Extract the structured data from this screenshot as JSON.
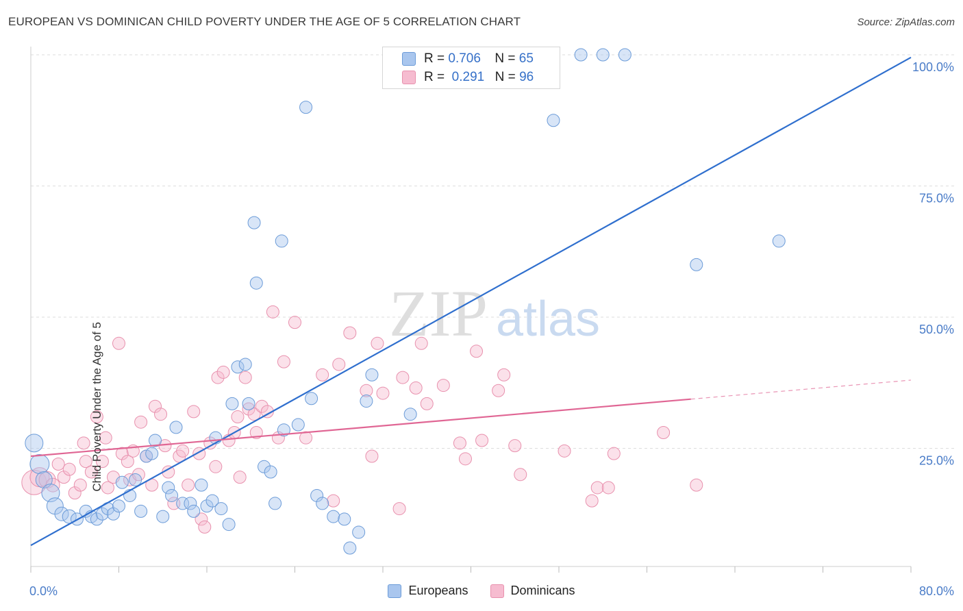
{
  "title": "EUROPEAN VS DOMINICAN CHILD POVERTY UNDER THE AGE OF 5 CORRELATION CHART",
  "source": "Source: ZipAtlas.com",
  "watermark": {
    "zip": "ZIP",
    "atlas": "atlas"
  },
  "legend": {
    "rows": [
      {
        "r_label": "R =",
        "r_value": "0.706",
        "n_label": "N =",
        "n_value": "65"
      },
      {
        "r_label": "R =",
        "r_value": "0.291",
        "n_label": "N =",
        "n_value": "96"
      }
    ]
  },
  "bottom_legend": [
    "Europeans",
    "Dominicans"
  ],
  "colors": {
    "europeans_fill": "#a9c6ee",
    "europeans_stroke": "#6b9bd8",
    "europeans_line": "#2f6fce",
    "dominicans_fill": "#f6bcd0",
    "dominicans_stroke": "#e890ad",
    "dominicans_line": "#e06694",
    "grid": "#dddddd",
    "tick_text": "#4a7cc8"
  },
  "chart_data": {
    "type": "scatter",
    "title": "EUROPEAN VS DOMINICAN CHILD POVERTY UNDER THE AGE OF 5 CORRELATION CHART",
    "xlabel": "",
    "ylabel": "Child Poverty Under the Age of 5",
    "xlim": [
      0,
      80
    ],
    "ylim": [
      0,
      105
    ],
    "x_tick_labels": [
      "0.0%",
      "80.0%"
    ],
    "y_ticks": [
      25,
      50,
      75,
      100
    ],
    "y_tick_labels": [
      "25.0%",
      "50.0%",
      "75.0%",
      "100.0%"
    ],
    "grid": true,
    "series": [
      {
        "name": "Europeans",
        "R": 0.706,
        "N": 65,
        "trend": {
          "x0": 0,
          "y0": 6.5,
          "x1": 80,
          "y1": 99.5,
          "dashed_from": null
        },
        "points": [
          [
            0.3,
            26.0,
            13
          ],
          [
            0.8,
            22.0,
            14
          ],
          [
            1.2,
            19.0,
            12
          ],
          [
            1.8,
            16.5,
            13
          ],
          [
            2.2,
            14.0,
            12
          ],
          [
            2.8,
            12.5,
            10
          ],
          [
            3.5,
            12.0,
            10
          ],
          [
            4.2,
            11.5,
            9
          ],
          [
            5.0,
            13.0,
            9
          ],
          [
            5.5,
            12.0,
            9
          ],
          [
            6.0,
            11.5,
            9
          ],
          [
            6.5,
            12.5,
            9
          ],
          [
            7.0,
            13.5,
            9
          ],
          [
            7.5,
            12.5,
            9
          ],
          [
            8.0,
            14.0,
            9
          ],
          [
            8.3,
            18.5,
            9
          ],
          [
            9.0,
            16.0,
            9
          ],
          [
            9.5,
            19.0,
            9
          ],
          [
            10.0,
            13.0,
            9
          ],
          [
            10.5,
            23.5,
            9
          ],
          [
            11.0,
            24.0,
            9
          ],
          [
            11.3,
            26.5,
            9
          ],
          [
            12.0,
            12.0,
            9
          ],
          [
            12.5,
            17.5,
            9
          ],
          [
            12.8,
            16.0,
            9
          ],
          [
            13.2,
            29.0,
            9
          ],
          [
            13.8,
            14.5,
            9
          ],
          [
            14.5,
            14.5,
            9
          ],
          [
            14.8,
            13.0,
            9
          ],
          [
            15.5,
            18.0,
            9
          ],
          [
            16.0,
            14.0,
            9
          ],
          [
            16.5,
            15.0,
            9
          ],
          [
            16.8,
            27.0,
            9
          ],
          [
            17.3,
            13.5,
            9
          ],
          [
            18.0,
            10.5,
            9
          ],
          [
            18.3,
            33.5,
            9
          ],
          [
            18.8,
            40.5,
            9
          ],
          [
            19.5,
            41.0,
            9
          ],
          [
            19.8,
            33.5,
            9
          ],
          [
            20.3,
            68.0,
            9
          ],
          [
            20.5,
            56.5,
            9
          ],
          [
            21.2,
            21.5,
            9
          ],
          [
            21.8,
            20.5,
            9
          ],
          [
            22.2,
            14.5,
            9
          ],
          [
            22.8,
            64.5,
            9
          ],
          [
            23.0,
            28.5,
            9
          ],
          [
            24.3,
            29.5,
            9
          ],
          [
            25.0,
            90.0,
            9
          ],
          [
            25.5,
            34.5,
            9
          ],
          [
            26.0,
            16.0,
            9
          ],
          [
            26.5,
            14.5,
            9
          ],
          [
            27.5,
            12.0,
            9
          ],
          [
            28.5,
            11.5,
            9
          ],
          [
            29.0,
            6.0,
            9
          ],
          [
            29.8,
            9.0,
            9
          ],
          [
            30.5,
            34.0,
            9
          ],
          [
            31.0,
            39.0,
            9
          ],
          [
            34.5,
            31.5,
            9
          ],
          [
            47.5,
            87.5,
            9
          ],
          [
            50.0,
            100.0,
            9
          ],
          [
            52.0,
            100.0,
            9
          ],
          [
            54.0,
            100.0,
            9
          ],
          [
            60.5,
            60.0,
            9
          ],
          [
            68.0,
            64.5,
            9
          ]
        ]
      },
      {
        "name": "Dominicans",
        "R": 0.291,
        "N": 96,
        "trend": {
          "x0": 0,
          "y0": 23.5,
          "x1": 80,
          "y1": 38.0,
          "dashed_from": 60
        },
        "points": [
          [
            0.3,
            18.5,
            18
          ],
          [
            0.8,
            19.5,
            14
          ],
          [
            1.5,
            19.0,
            12
          ],
          [
            2.0,
            18.0,
            10
          ],
          [
            2.5,
            22.0,
            9
          ],
          [
            3.0,
            19.5,
            9
          ],
          [
            3.5,
            21.0,
            9
          ],
          [
            4.0,
            16.5,
            9
          ],
          [
            4.5,
            18.0,
            9
          ],
          [
            4.8,
            26.0,
            9
          ],
          [
            5.0,
            22.5,
            9
          ],
          [
            5.5,
            20.5,
            9
          ],
          [
            6.0,
            31.0,
            9
          ],
          [
            6.5,
            22.5,
            9
          ],
          [
            6.8,
            27.0,
            9
          ],
          [
            7.0,
            17.5,
            9
          ],
          [
            7.5,
            19.5,
            9
          ],
          [
            8.0,
            45.0,
            9
          ],
          [
            8.3,
            24.0,
            9
          ],
          [
            8.8,
            22.5,
            9
          ],
          [
            9.0,
            19.0,
            9
          ],
          [
            9.3,
            24.5,
            9
          ],
          [
            9.8,
            20.0,
            9
          ],
          [
            10.0,
            30.0,
            9
          ],
          [
            10.5,
            23.5,
            9
          ],
          [
            11.0,
            18.0,
            9
          ],
          [
            11.3,
            33.0,
            9
          ],
          [
            11.8,
            31.5,
            9
          ],
          [
            12.2,
            25.5,
            9
          ],
          [
            12.5,
            20.5,
            9
          ],
          [
            13.0,
            14.5,
            9
          ],
          [
            13.5,
            23.5,
            9
          ],
          [
            13.8,
            24.5,
            9
          ],
          [
            14.3,
            18.0,
            9
          ],
          [
            14.8,
            32.0,
            9
          ],
          [
            15.3,
            24.0,
            9
          ],
          [
            15.5,
            11.5,
            9
          ],
          [
            15.8,
            10.0,
            9
          ],
          [
            16.3,
            26.0,
            9
          ],
          [
            16.8,
            21.5,
            9
          ],
          [
            17.0,
            38.5,
            9
          ],
          [
            17.5,
            39.5,
            9
          ],
          [
            18.0,
            26.5,
            9
          ],
          [
            18.5,
            28.0,
            9
          ],
          [
            18.8,
            31.0,
            9
          ],
          [
            19.0,
            19.5,
            9
          ],
          [
            19.5,
            38.5,
            9
          ],
          [
            19.8,
            32.5,
            9
          ],
          [
            20.3,
            31.5,
            9
          ],
          [
            20.5,
            28.0,
            9
          ],
          [
            21.0,
            33.0,
            9
          ],
          [
            21.5,
            32.0,
            9
          ],
          [
            22.0,
            51.0,
            9
          ],
          [
            22.5,
            27.0,
            9
          ],
          [
            23.0,
            41.5,
            9
          ],
          [
            24.0,
            49.0,
            9
          ],
          [
            25.0,
            27.0,
            9
          ],
          [
            26.5,
            39.0,
            9
          ],
          [
            27.5,
            15.0,
            9
          ],
          [
            28.0,
            41.0,
            9
          ],
          [
            29.0,
            47.0,
            9
          ],
          [
            30.5,
            36.0,
            9
          ],
          [
            31.0,
            23.5,
            9
          ],
          [
            31.5,
            45.0,
            9
          ],
          [
            32.0,
            35.5,
            9
          ],
          [
            33.5,
            13.5,
            9
          ],
          [
            33.8,
            38.5,
            9
          ],
          [
            35.0,
            36.5,
            9
          ],
          [
            35.5,
            45.0,
            9
          ],
          [
            36.0,
            33.5,
            9
          ],
          [
            37.5,
            37.0,
            9
          ],
          [
            39.0,
            26.0,
            9
          ],
          [
            39.5,
            23.0,
            9
          ],
          [
            40.5,
            43.5,
            9
          ],
          [
            41.0,
            26.5,
            9
          ],
          [
            42.5,
            36.0,
            9
          ],
          [
            43.0,
            39.0,
            9
          ],
          [
            44.0,
            25.5,
            9
          ],
          [
            44.5,
            20.0,
            9
          ],
          [
            48.5,
            24.5,
            9
          ],
          [
            51.0,
            15.0,
            9
          ],
          [
            51.5,
            17.5,
            9
          ],
          [
            52.5,
            17.5,
            9
          ],
          [
            53.0,
            24.0,
            9
          ],
          [
            57.5,
            28.0,
            9
          ],
          [
            60.5,
            18.0,
            9
          ]
        ]
      }
    ]
  }
}
